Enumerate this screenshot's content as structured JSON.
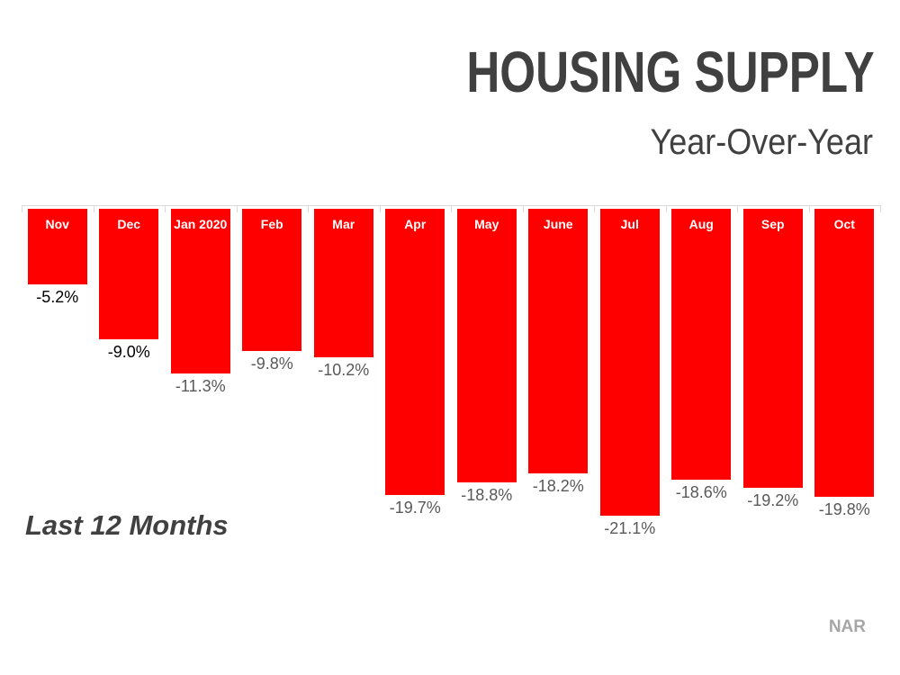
{
  "chart_data": {
    "type": "bar",
    "orientation": "columns-hanging-from-zero-baseline",
    "title": "HOUSING SUPPLY",
    "subtitle": "Year-Over-Year",
    "categories": [
      "Nov",
      "Dec",
      "Jan 2020",
      "Feb",
      "Mar",
      "Apr",
      "May",
      "June",
      "Jul",
      "Aug",
      "Sep",
      "Oct"
    ],
    "values": [
      -5.2,
      -9.0,
      -11.3,
      -9.8,
      -10.2,
      -19.7,
      -18.8,
      -18.2,
      -21.1,
      -18.6,
      -19.2,
      -19.8
    ],
    "data_labels": [
      "-5.2%",
      "-9.0%",
      "-11.3%",
      "-9.8%",
      "-10.2%",
      "-19.7%",
      "-18.8%",
      "-18.2%",
      "-21.1%",
      "-18.6%",
      "-19.2%",
      "-19.8%"
    ],
    "data_label_colors": [
      "#000000",
      "#000000",
      "#595959",
      "#595959",
      "#595959",
      "#595959",
      "#595959",
      "#595959",
      "#595959",
      "#595959",
      "#595959",
      "#595959"
    ],
    "bar_color": "#ff0000",
    "category_label_color": "#ffffff",
    "axis_color": "#d9d9d9",
    "title_color": "#404040",
    "baseline_value": 0,
    "ylim": [
      -22,
      0
    ],
    "grid": false,
    "legend": false,
    "annotation": "Last 12 Months",
    "source": "NAR"
  }
}
